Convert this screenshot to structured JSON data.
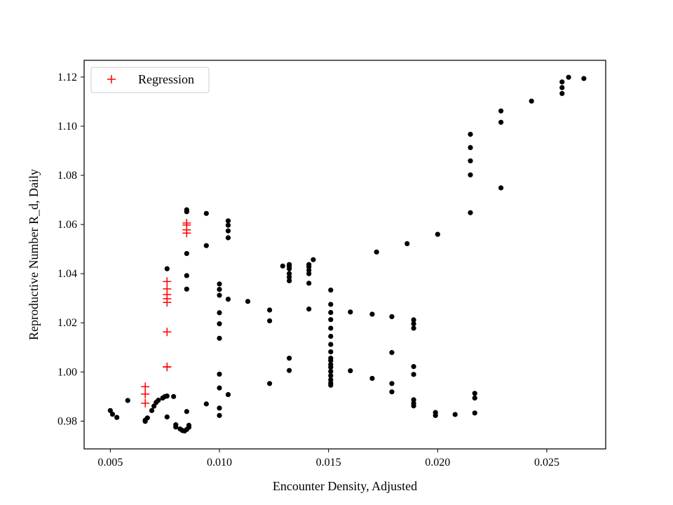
{
  "chart_data": {
    "type": "scatter",
    "xlabel": "Encounter Density, Adjusted",
    "ylabel": "Reproductive Number R_d, Daily",
    "xlim": [
      0.0038,
      0.0277
    ],
    "ylim": [
      0.9687,
      1.1268
    ],
    "xticks": [
      0.005,
      0.01,
      0.015,
      0.02,
      0.025
    ],
    "xtick_labels": [
      "0.005",
      "0.010",
      "0.015",
      "0.020",
      "0.025"
    ],
    "yticks": [
      0.98,
      1.0,
      1.02,
      1.04,
      1.06,
      1.08,
      1.1,
      1.12
    ],
    "ytick_labels": [
      "0.98",
      "1.00",
      "1.02",
      "1.04",
      "1.06",
      "1.08",
      "1.10",
      "1.12"
    ],
    "grid": false,
    "legend": {
      "position": "top-left",
      "entries": [
        {
          "label": "Regression",
          "marker": "+",
          "color": "#ff0000"
        }
      ]
    },
    "series": [
      {
        "marker": "dot",
        "color": "#000000",
        "points": [
          [
            0.005,
            0.9843
          ],
          [
            0.0051,
            0.9828
          ],
          [
            0.0053,
            0.9815
          ],
          [
            0.0058,
            0.9884
          ],
          [
            0.0066,
            0.9799
          ],
          [
            0.0066,
            0.9804
          ],
          [
            0.0067,
            0.9813
          ],
          [
            0.0069,
            0.9843
          ],
          [
            0.007,
            0.9861
          ],
          [
            0.0071,
            0.9876
          ],
          [
            0.0072,
            0.9885
          ],
          [
            0.0074,
            0.9894
          ],
          [
            0.0075,
            0.99
          ],
          [
            0.0076,
            0.9902
          ],
          [
            0.0076,
            0.9817
          ],
          [
            0.0076,
            1.042
          ],
          [
            0.0079,
            0.99
          ],
          [
            0.008,
            0.9785
          ],
          [
            0.008,
            0.9776
          ],
          [
            0.0082,
            0.9768
          ],
          [
            0.0083,
            0.9762
          ],
          [
            0.0084,
            0.976
          ],
          [
            0.0085,
            0.9766
          ],
          [
            0.0086,
            0.9775
          ],
          [
            0.0086,
            0.9783
          ],
          [
            0.0085,
            0.9839
          ],
          [
            0.0085,
            1.0337
          ],
          [
            0.0085,
            1.0392
          ],
          [
            0.0085,
            1.0482
          ],
          [
            0.0085,
            1.0652
          ],
          [
            0.0085,
            1.066
          ],
          [
            0.0094,
            0.987
          ],
          [
            0.0094,
            1.0514
          ],
          [
            0.0094,
            1.0645
          ],
          [
            0.01,
            0.9823
          ],
          [
            0.01,
            0.9853
          ],
          [
            0.01,
            0.9935
          ],
          [
            0.01,
            0.9991
          ],
          [
            0.01,
            1.0137
          ],
          [
            0.01,
            1.0196
          ],
          [
            0.01,
            1.0241
          ],
          [
            0.01,
            1.0312
          ],
          [
            0.01,
            1.0336
          ],
          [
            0.01,
            1.0358
          ],
          [
            0.0104,
            0.9908
          ],
          [
            0.0104,
            1.0296
          ],
          [
            0.0104,
            1.0546
          ],
          [
            0.0104,
            1.0574
          ],
          [
            0.0104,
            1.0597
          ],
          [
            0.0104,
            1.0615
          ],
          [
            0.0113,
            1.0287
          ],
          [
            0.0123,
            0.9953
          ],
          [
            0.0123,
            1.0208
          ],
          [
            0.0123,
            1.0252
          ],
          [
            0.0129,
            1.0431
          ],
          [
            0.0132,
            1.0006
          ],
          [
            0.0132,
            1.0056
          ],
          [
            0.0132,
            1.0371
          ],
          [
            0.0132,
            1.0386
          ],
          [
            0.0132,
            1.04
          ],
          [
            0.0132,
            1.042
          ],
          [
            0.0132,
            1.043
          ],
          [
            0.0132,
            1.0437
          ],
          [
            0.0141,
            1.0256
          ],
          [
            0.0141,
            1.0361
          ],
          [
            0.0141,
            1.04
          ],
          [
            0.0141,
            1.0414
          ],
          [
            0.0141,
            1.0428
          ],
          [
            0.0141,
            1.0437
          ],
          [
            0.0143,
            1.0457
          ],
          [
            0.0151,
            0.9946
          ],
          [
            0.0151,
            0.9955
          ],
          [
            0.0151,
            0.9968
          ],
          [
            0.0151,
            0.9985
          ],
          [
            0.0151,
            1.0002
          ],
          [
            0.0151,
            1.0019
          ],
          [
            0.0151,
            1.003
          ],
          [
            0.0151,
            1.0046
          ],
          [
            0.0151,
            1.0056
          ],
          [
            0.0151,
            1.0082
          ],
          [
            0.0151,
            1.0112
          ],
          [
            0.0151,
            1.0145
          ],
          [
            0.0151,
            1.0178
          ],
          [
            0.0151,
            1.0213
          ],
          [
            0.0151,
            1.0242
          ],
          [
            0.0151,
            1.0275
          ],
          [
            0.0151,
            1.0333
          ],
          [
            0.016,
            1.0005
          ],
          [
            0.016,
            1.0244
          ],
          [
            0.017,
            0.9974
          ],
          [
            0.017,
            1.0235
          ],
          [
            0.0172,
            1.0488
          ],
          [
            0.0179,
            0.9919
          ],
          [
            0.0179,
            0.9953
          ],
          [
            0.0179,
            1.0079
          ],
          [
            0.0179,
            1.0225
          ],
          [
            0.0186,
            1.0522
          ],
          [
            0.0189,
            0.9862
          ],
          [
            0.0189,
            0.9873
          ],
          [
            0.0189,
            0.9887
          ],
          [
            0.0189,
            0.999
          ],
          [
            0.0189,
            1.0022
          ],
          [
            0.0189,
            1.0178
          ],
          [
            0.0189,
            1.0196
          ],
          [
            0.0189,
            1.0212
          ],
          [
            0.0199,
            0.9823
          ],
          [
            0.0199,
            0.9835
          ],
          [
            0.02,
            1.056
          ],
          [
            0.0208,
            0.9827
          ],
          [
            0.0215,
            1.0648
          ],
          [
            0.0215,
            1.0802
          ],
          [
            0.0215,
            1.0859
          ],
          [
            0.0215,
            1.0913
          ],
          [
            0.0215,
            1.0967
          ],
          [
            0.0217,
            0.9833
          ],
          [
            0.0217,
            0.9894
          ],
          [
            0.0217,
            0.9913
          ],
          [
            0.0229,
            1.0749
          ],
          [
            0.0229,
            1.1016
          ],
          [
            0.0229,
            1.1062
          ],
          [
            0.0243,
            1.1102
          ],
          [
            0.0257,
            1.1133
          ],
          [
            0.0257,
            1.1157
          ],
          [
            0.0257,
            1.118
          ],
          [
            0.026,
            1.1199
          ],
          [
            0.0267,
            1.1194
          ]
        ]
      },
      {
        "name": "Regression",
        "marker": "+",
        "color": "#ff0000",
        "points": [
          [
            0.0066,
            0.9873
          ],
          [
            0.0066,
            0.991
          ],
          [
            0.0066,
            0.994
          ],
          [
            0.0076,
            1.002
          ],
          [
            0.0076,
            1.0021
          ],
          [
            0.0076,
            1.0163
          ],
          [
            0.0076,
            1.0283
          ],
          [
            0.0076,
            1.0298
          ],
          [
            0.0076,
            1.0315
          ],
          [
            0.0076,
            1.0338
          ],
          [
            0.0076,
            1.0368
          ],
          [
            0.0085,
            1.0565
          ],
          [
            0.0085,
            1.0578
          ],
          [
            0.0085,
            1.0598
          ],
          [
            0.0085,
            1.0606
          ]
        ]
      }
    ]
  }
}
